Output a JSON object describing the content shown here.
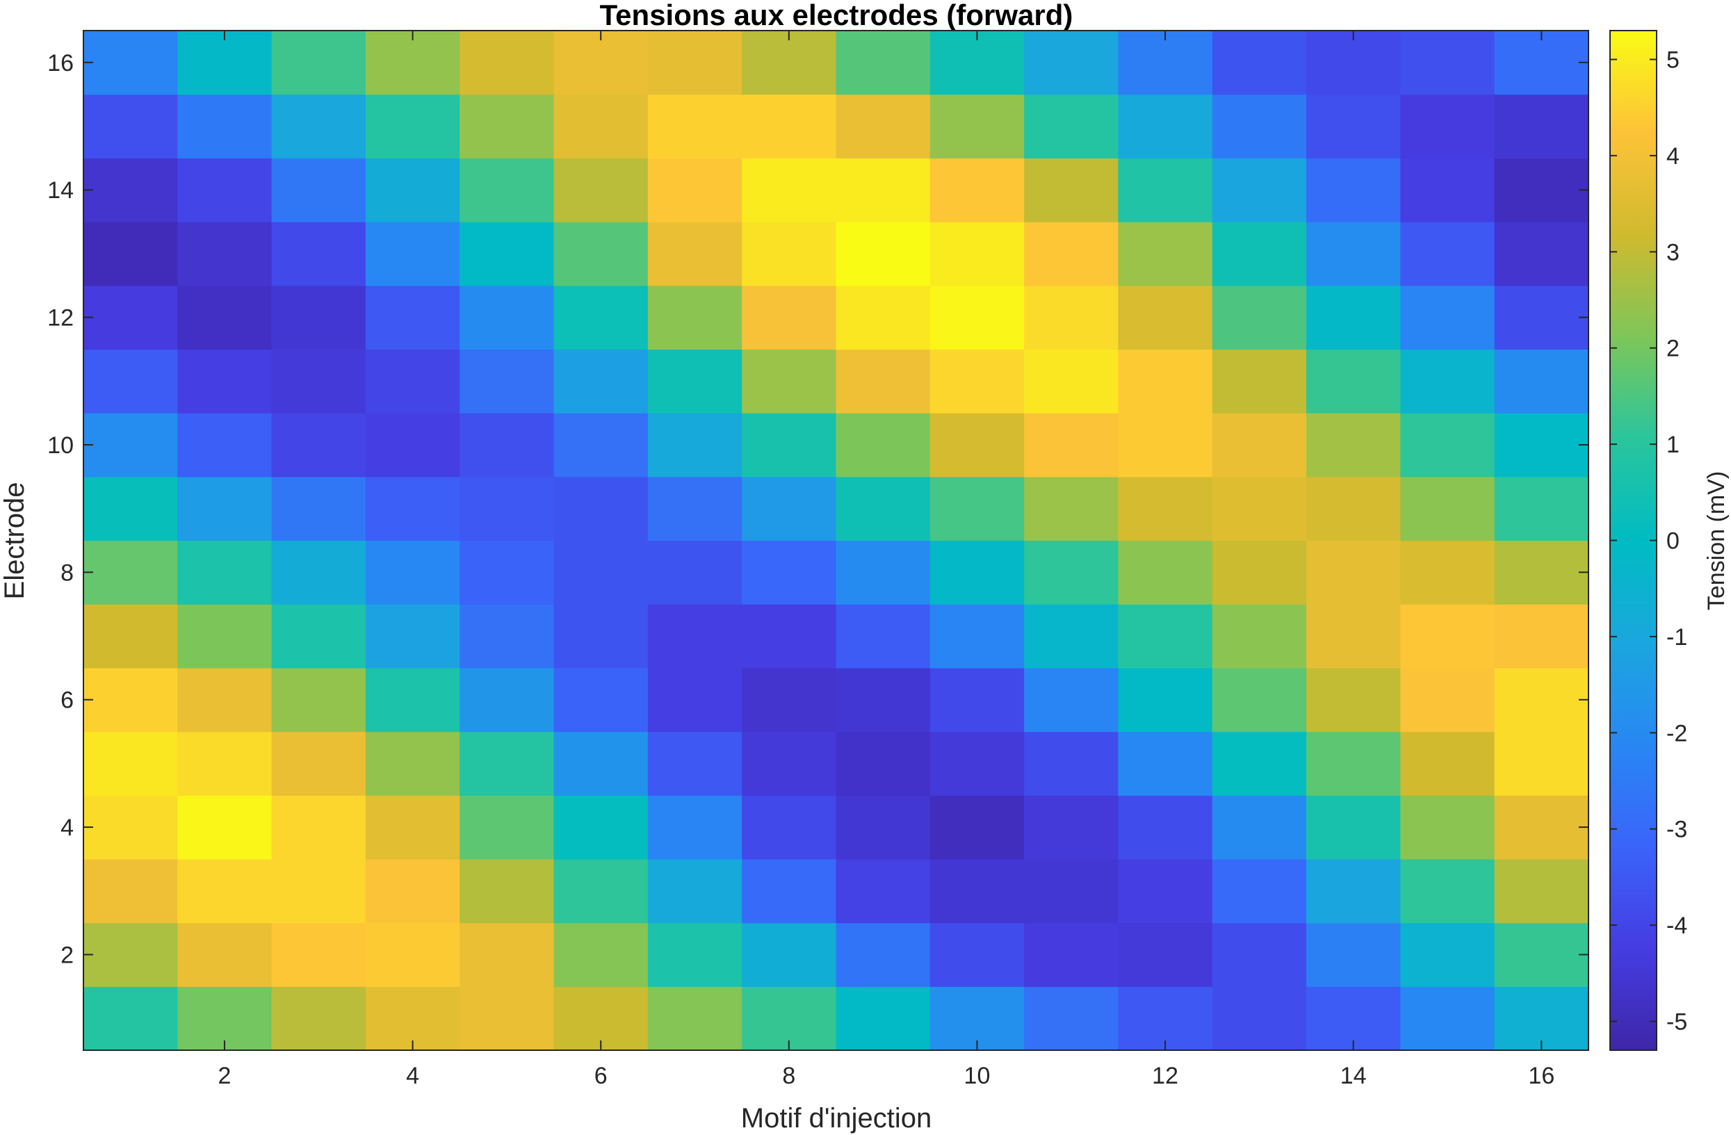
{
  "chart_data": {
    "type": "heatmap",
    "title": "Tensions aux electrodes (forward)",
    "xlabel": "Motif d'injection",
    "ylabel": "Electrode",
    "colorbar_label": "Tension (mV)",
    "x": [
      1,
      2,
      3,
      4,
      5,
      6,
      7,
      8,
      9,
      10,
      11,
      12,
      13,
      14,
      15,
      16
    ],
    "y": [
      1,
      2,
      3,
      4,
      5,
      6,
      7,
      8,
      9,
      10,
      11,
      12,
      13,
      14,
      15,
      16
    ],
    "xlim": [
      0.5,
      16.5
    ],
    "ylim": [
      0.5,
      16.5
    ],
    "y_direction": "normal",
    "x_ticks": [
      2,
      4,
      6,
      8,
      10,
      12,
      14,
      16
    ],
    "y_ticks": [
      2,
      4,
      6,
      8,
      10,
      12,
      14,
      16
    ],
    "colormap": "parula",
    "clim": [
      -5.3,
      5.3
    ],
    "colorbar_ticks": [
      -5,
      -4,
      -3,
      -2,
      -1,
      0,
      1,
      2,
      3,
      4,
      5
    ],
    "colorbar_location": "right",
    "z": [
      [
        0.9,
        2.0,
        2.9,
        3.6,
        3.8,
        3.1,
        2.2,
        1.2,
        -0.1,
        -1.8,
        -2.8,
        -3.5,
        -3.8,
        -3.4,
        -2.1,
        -0.6
      ],
      [
        2.7,
        3.8,
        4.3,
        4.4,
        3.8,
        2.2,
        0.7,
        -0.7,
        -2.7,
        -3.8,
        -4.3,
        -4.4,
        -3.8,
        -2.3,
        -0.5,
        1.2
      ],
      [
        3.9,
        4.6,
        4.6,
        4.2,
        2.8,
        1.1,
        -0.9,
        -3.0,
        -4.1,
        -4.5,
        -4.5,
        -4.2,
        -3.0,
        -1.1,
        1.1,
        2.8
      ],
      [
        4.7,
        5.2,
        4.6,
        3.6,
        1.7,
        0.1,
        -2.2,
        -3.9,
        -4.5,
        -4.9,
        -4.4,
        -3.8,
        -2.0,
        0.6,
        2.3,
        3.7
      ],
      [
        4.9,
        4.7,
        3.8,
        2.4,
        0.9,
        -1.7,
        -3.5,
        -4.4,
        -4.7,
        -4.4,
        -3.8,
        -2.1,
        0.1,
        1.7,
        3.2,
        4.7
      ],
      [
        4.5,
        3.8,
        2.4,
        0.7,
        -1.6,
        -3.2,
        -4.2,
        -4.6,
        -4.5,
        -3.9,
        -2.2,
        -0.1,
        1.7,
        3.0,
        4.2,
        4.7
      ],
      [
        3.2,
        2.1,
        0.7,
        -1.2,
        -2.8,
        -3.6,
        -4.2,
        -4.2,
        -3.4,
        -2.2,
        -0.3,
        0.9,
        2.3,
        3.7,
        4.3,
        4.2
      ],
      [
        1.8,
        0.7,
        -0.8,
        -2.1,
        -3.2,
        -3.6,
        -3.6,
        -3.1,
        -2.0,
        -0.2,
        1.1,
        2.3,
        3.1,
        3.7,
        3.4,
        2.8
      ],
      [
        0.2,
        -1.4,
        -2.6,
        -3.3,
        -3.5,
        -3.6,
        -2.8,
        -1.5,
        0.4,
        1.4,
        2.5,
        3.3,
        3.5,
        3.3,
        2.3,
        1.1
      ],
      [
        -1.9,
        -3.3,
        -4.0,
        -4.2,
        -3.7,
        -2.8,
        -0.9,
        0.6,
        2.1,
        3.3,
        4.2,
        4.4,
        3.8,
        2.6,
        1.1,
        -0.1
      ],
      [
        -3.4,
        -4.2,
        -4.4,
        -4.0,
        -2.8,
        -1.3,
        0.4,
        2.5,
        3.9,
        4.6,
        4.9,
        4.4,
        3.0,
        1.2,
        -0.4,
        -2.0
      ],
      [
        -4.3,
        -4.8,
        -4.5,
        -3.5,
        -2.0,
        0.3,
        2.3,
        4.1,
        4.9,
        5.2,
        4.7,
        3.4,
        1.5,
        -0.2,
        -2.2,
        -3.8
      ],
      [
        -5.0,
        -4.6,
        -3.9,
        -2.1,
        -0.1,
        1.6,
        3.8,
        4.8,
        5.3,
        5.0,
        4.3,
        2.5,
        0.4,
        -1.9,
        -3.5,
        -4.6
      ],
      [
        -4.6,
        -4.0,
        -2.6,
        -0.8,
        1.3,
        2.9,
        4.3,
        5.0,
        5.0,
        4.3,
        3.0,
        0.8,
        -1.1,
        -2.9,
        -4.2,
        -4.9
      ],
      [
        -3.7,
        -2.5,
        -1.0,
        0.9,
        2.4,
        3.6,
        4.5,
        4.5,
        3.8,
        2.4,
        0.9,
        -0.9,
        -2.5,
        -3.7,
        -4.3,
        -4.5
      ],
      [
        -2.2,
        -0.2,
        1.3,
        2.4,
        3.3,
        3.8,
        3.7,
        2.9,
        1.6,
        0.4,
        -1.0,
        -2.4,
        -3.6,
        -3.9,
        -3.7,
        -2.9
      ]
    ]
  }
}
